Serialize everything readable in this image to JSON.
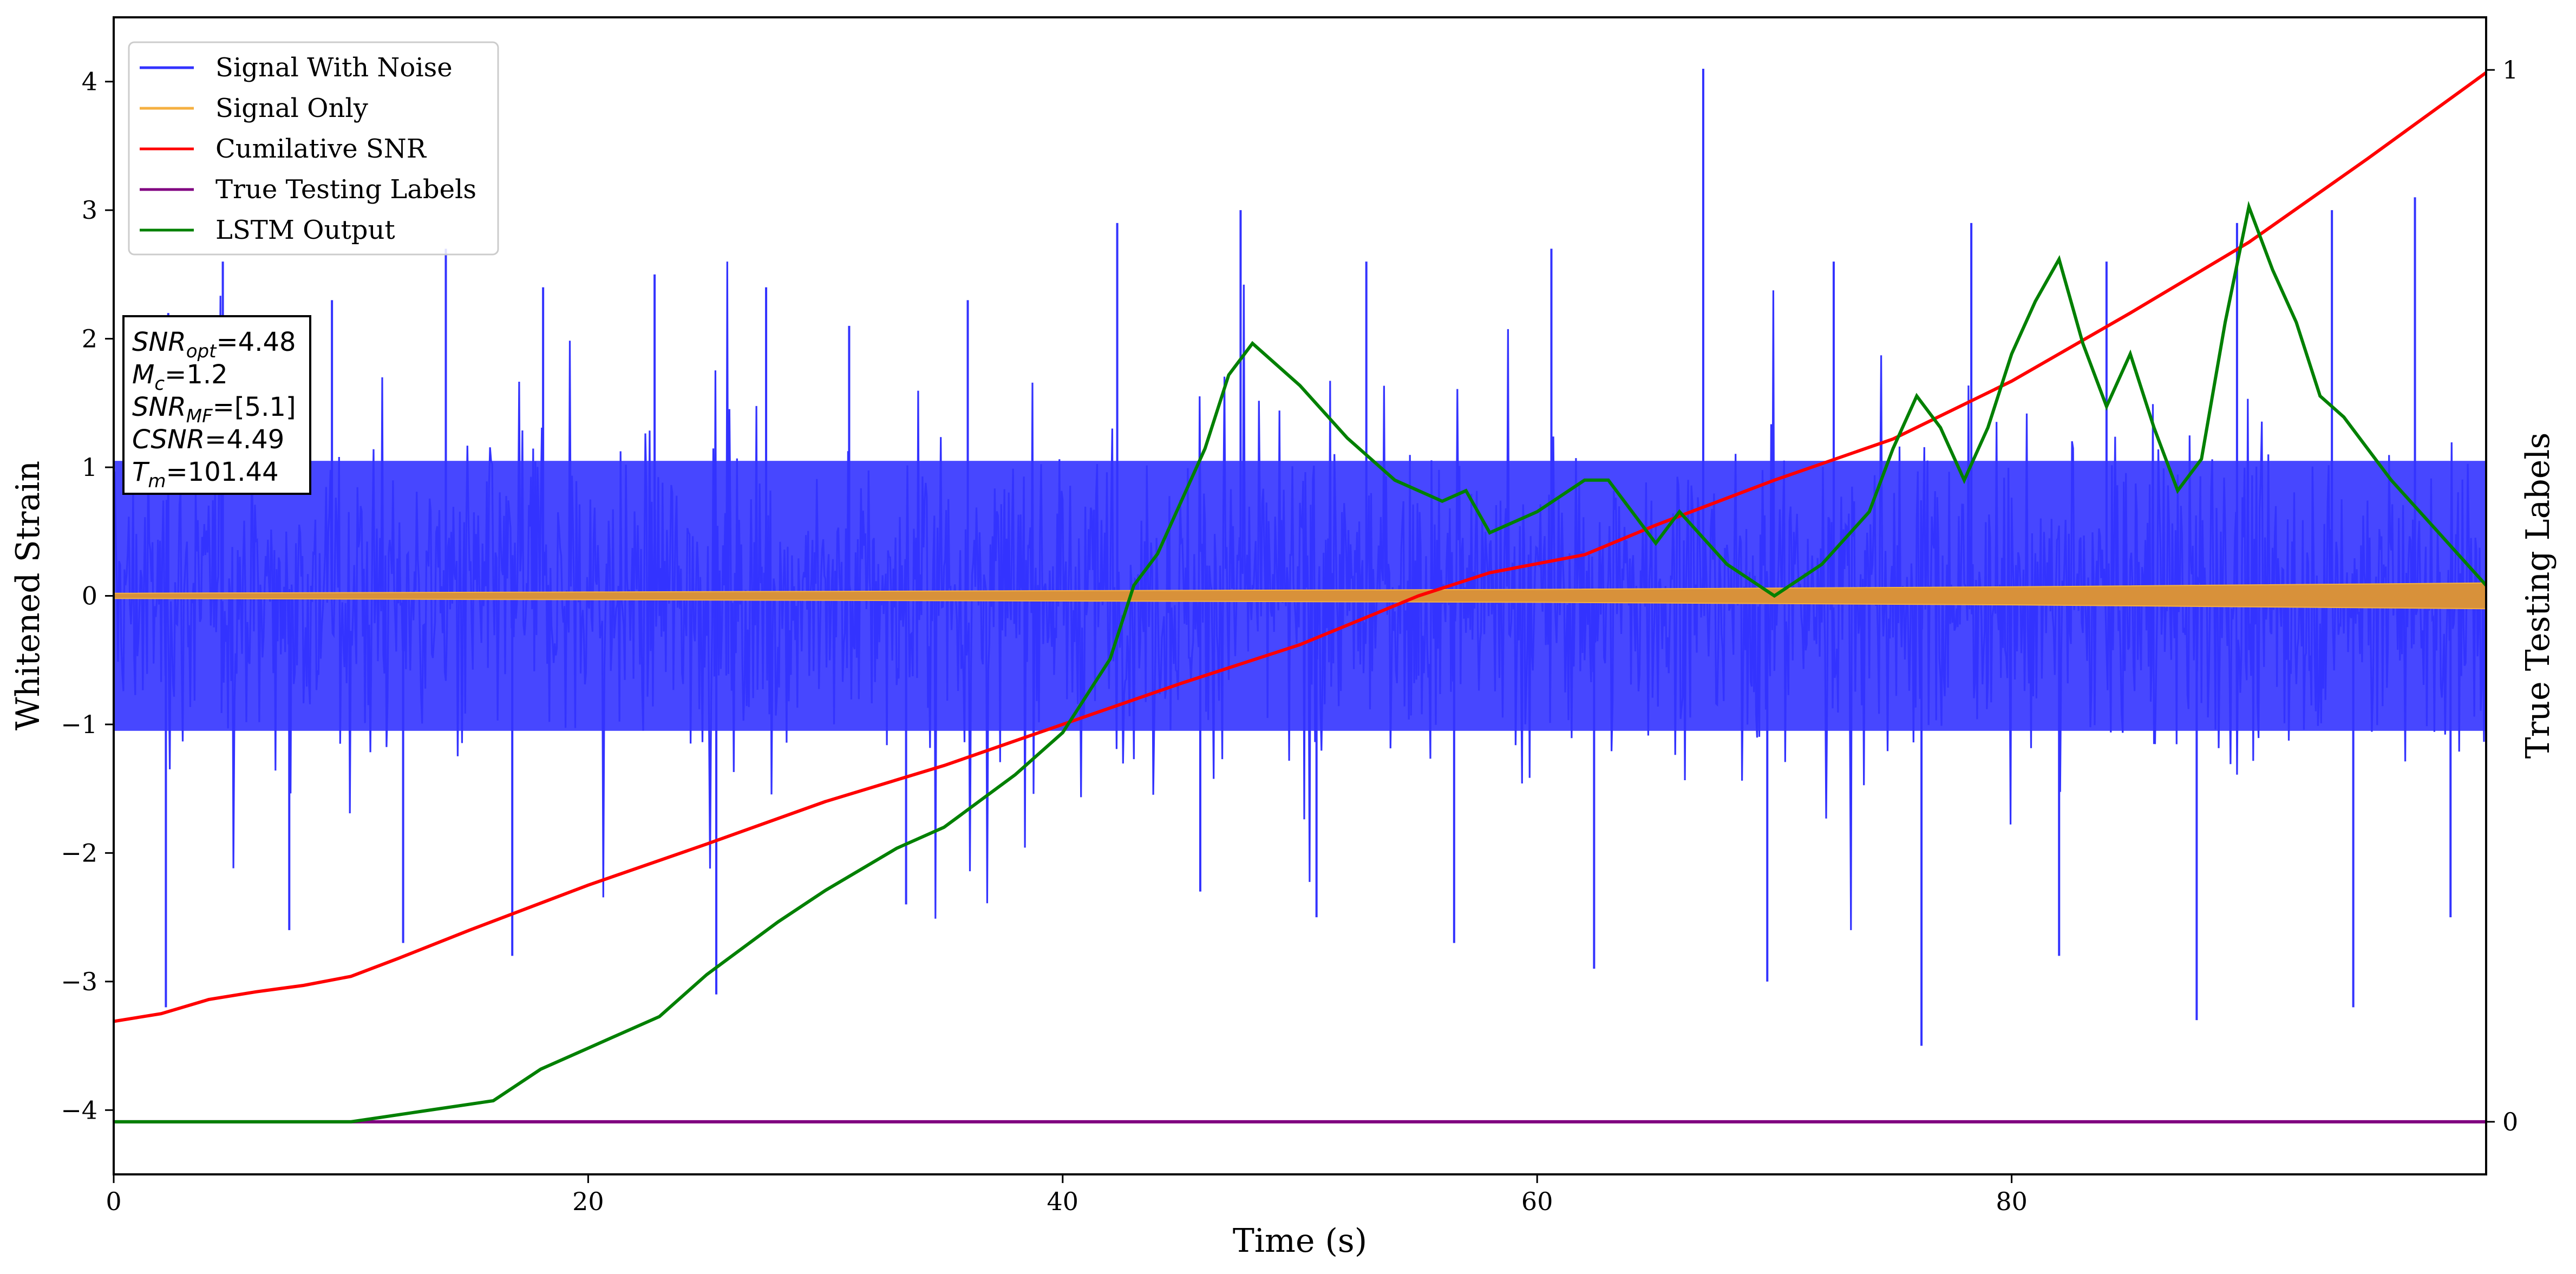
{
  "chart_data": {
    "type": "line",
    "xlabel": "Time (s)",
    "ylabel": "Whitened Strain",
    "y2label": "True Testing Labels",
    "xlim": [
      0,
      100
    ],
    "ylim": [
      -4.5,
      4.5
    ],
    "y2lim": [
      -0.05,
      1.05
    ],
    "x_ticks": [
      "0",
      "20",
      "40",
      "60",
      "80"
    ],
    "x_tick_values": [
      0,
      20,
      40,
      60,
      80
    ],
    "y_ticks": [
      "−4",
      "−3",
      "−2",
      "−1",
      "0",
      "1",
      "2",
      "3",
      "4"
    ],
    "y_tick_values": [
      -4,
      -3,
      -2,
      -1,
      0,
      1,
      2,
      3,
      4
    ],
    "y2_ticks": [
      "0",
      "1"
    ],
    "y2_tick_values": [
      0,
      1
    ],
    "legend_position": "upper-left",
    "series": [
      {
        "name": "Signal With Noise",
        "color": "#3333ff",
        "axis": "left",
        "description_values": "dense white-noise strain, central band ~±1.2, spikes to ~±3",
        "spikes_up": [
          [
            2.3,
            2.2
          ],
          [
            4.6,
            2.6
          ],
          [
            9.2,
            2.3
          ],
          [
            14.0,
            2.7
          ],
          [
            18.1,
            2.4
          ],
          [
            22.8,
            2.5
          ],
          [
            27.5,
            2.4
          ],
          [
            31.0,
            2.1
          ],
          [
            36.0,
            2.3
          ],
          [
            42.3,
            2.9
          ],
          [
            47.5,
            3.0
          ],
          [
            52.8,
            2.6
          ],
          [
            60.6,
            2.7
          ],
          [
            67.0,
            4.1
          ],
          [
            72.5,
            2.6
          ],
          [
            78.3,
            2.9
          ],
          [
            84.0,
            2.6
          ],
          [
            89.5,
            2.9
          ],
          [
            93.5,
            3.0
          ],
          [
            97.0,
            3.1
          ]
        ],
        "spikes_down": [
          [
            2.2,
            -3.2
          ],
          [
            7.4,
            -2.6
          ],
          [
            12.2,
            -2.7
          ],
          [
            16.8,
            -2.8
          ],
          [
            25.4,
            -3.1
          ],
          [
            33.4,
            -2.4
          ],
          [
            45.8,
            -2.3
          ],
          [
            50.7,
            -2.5
          ],
          [
            56.5,
            -2.7
          ],
          [
            62.4,
            -2.9
          ],
          [
            69.7,
            -3.0
          ],
          [
            76.2,
            -3.5
          ],
          [
            82.0,
            -2.8
          ],
          [
            87.8,
            -3.3
          ],
          [
            94.4,
            -3.2
          ],
          [
            98.5,
            -2.5
          ]
        ]
      },
      {
        "name": "Signal Only",
        "color": "#f5b041",
        "axis": "left",
        "envelope": [
          [
            0,
            0.02
          ],
          [
            20,
            0.03
          ],
          [
            40,
            0.04
          ],
          [
            60,
            0.05
          ],
          [
            80,
            0.07
          ],
          [
            100,
            0.1
          ]
        ]
      },
      {
        "name": "Cumilative SNR",
        "color": "#ff0000",
        "axis": "left",
        "x": [
          0,
          2,
          4,
          6,
          8,
          10,
          12,
          15,
          20,
          25,
          30,
          35,
          40,
          45,
          50,
          55,
          58,
          62,
          65,
          70,
          75,
          80,
          85,
          90,
          95,
          100
        ],
        "y": [
          -3.31,
          -3.25,
          -3.14,
          -3.08,
          -3.03,
          -2.96,
          -2.82,
          -2.6,
          -2.25,
          -1.93,
          -1.6,
          -1.32,
          -1.0,
          -0.68,
          -0.38,
          0.0,
          0.18,
          0.32,
          0.55,
          0.9,
          1.22,
          1.67,
          2.2,
          2.75,
          3.4,
          4.07
        ]
      },
      {
        "name": "True Testing Labels",
        "color": "#800080",
        "axis": "right",
        "x": [
          0,
          100
        ],
        "y": [
          0,
          0
        ]
      },
      {
        "name": "LSTM Output",
        "color": "#008000",
        "axis": "right",
        "x": [
          0,
          5,
          10,
          13,
          16,
          18,
          20,
          21,
          23,
          25,
          28,
          30,
          33,
          35,
          38,
          40,
          42,
          43,
          44,
          45,
          46,
          47,
          48,
          49,
          50,
          52,
          54,
          56,
          57,
          58,
          60,
          62,
          63,
          64,
          65,
          66,
          68,
          70,
          72,
          74,
          75,
          76,
          77,
          78,
          79,
          80,
          81,
          82,
          83,
          84,
          85,
          86,
          87,
          88,
          89,
          90,
          91,
          92,
          93,
          94,
          96,
          98,
          100
        ],
        "y": [
          0.0,
          0.0,
          0.0,
          0.01,
          0.02,
          0.05,
          0.07,
          0.08,
          0.1,
          0.14,
          0.19,
          0.22,
          0.26,
          0.28,
          0.33,
          0.37,
          0.44,
          0.51,
          0.54,
          0.59,
          0.64,
          0.71,
          0.74,
          0.72,
          0.7,
          0.65,
          0.61,
          0.59,
          0.6,
          0.56,
          0.58,
          0.61,
          0.61,
          0.58,
          0.55,
          0.58,
          0.53,
          0.5,
          0.53,
          0.58,
          0.64,
          0.69,
          0.66,
          0.61,
          0.66,
          0.73,
          0.78,
          0.82,
          0.74,
          0.68,
          0.73,
          0.66,
          0.6,
          0.63,
          0.76,
          0.87,
          0.81,
          0.76,
          0.69,
          0.67,
          0.61,
          0.56,
          0.51
        ]
      }
    ],
    "annotation": [
      {
        "main": "SNR",
        "sub": "opt",
        "value": "=4.48"
      },
      {
        "main": "M",
        "sub": "c",
        "value": "=1.2"
      },
      {
        "main": "SNR",
        "sub": "MF",
        "value": "=[5.1]"
      },
      {
        "main": "CSNR",
        "sub": "",
        "value": "=4.49"
      },
      {
        "main": "T",
        "sub": "m",
        "value": "=101.44"
      }
    ]
  }
}
